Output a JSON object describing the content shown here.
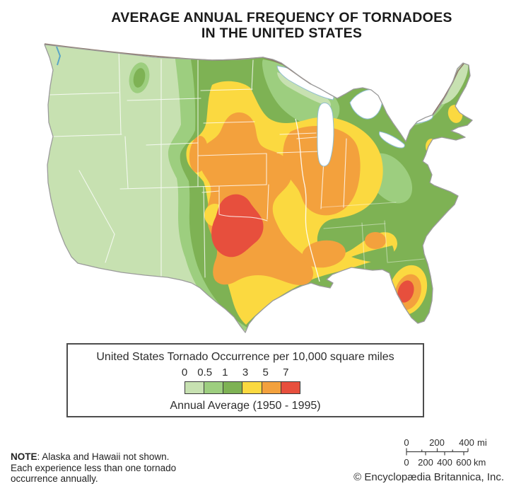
{
  "title": {
    "line1": "AVERAGE ANNUAL FREQUENCY OF TORNADOES",
    "line2": "IN THE UNITED STATES"
  },
  "legend": {
    "heading": "United States Tornado Occurrence per 10,000 square miles",
    "subheading": "Annual Average (1950 - 1995)",
    "bands": [
      {
        "label": "0",
        "color": "#c7e1b1"
      },
      {
        "label": "0.5",
        "color": "#9dce7f"
      },
      {
        "label": "1",
        "color": "#7eb254"
      },
      {
        "label": "3",
        "color": "#fbd940"
      },
      {
        "label": "5",
        "color": "#f3a13d"
      },
      {
        "label": "7",
        "color": "#e74f3d"
      }
    ]
  },
  "note": {
    "bold_label": "NOTE",
    "line1_rest": ": Alaska and Hawaii not shown.",
    "line2": "Each experience less than one tornado",
    "line3": "occurrence annually."
  },
  "scale_bar": {
    "mi_labels": [
      "0",
      "200",
      "400"
    ],
    "mi_unit": "mi",
    "km_labels": [
      "0",
      "200",
      "400",
      "600"
    ],
    "km_unit": "km"
  },
  "credit": "© Encyclopædia Britannica, Inc.",
  "map": {
    "region": "United States",
    "colors": {
      "water_outline": "#8fbdd0",
      "coast_outline": "#9b9b9b",
      "state_line": "#ffffff",
      "canada_border": "#8c7668",
      "puget_sound": "#5aa5c6"
    }
  }
}
